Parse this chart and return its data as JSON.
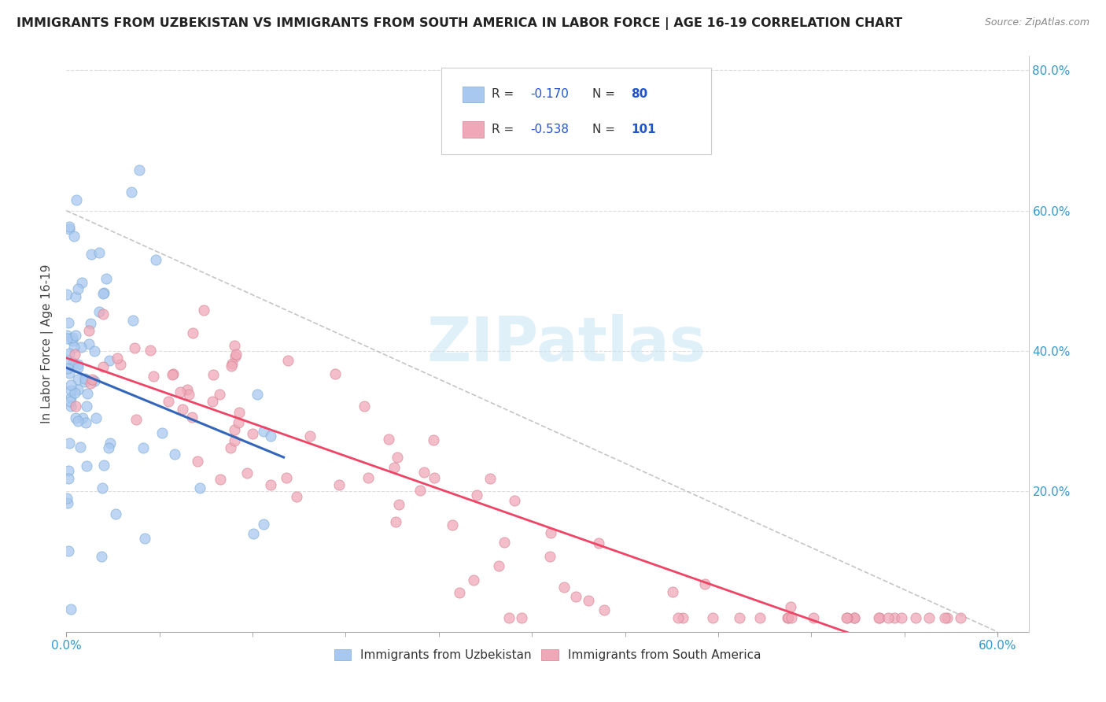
{
  "title": "IMMIGRANTS FROM UZBEKISTAN VS IMMIGRANTS FROM SOUTH AMERICA IN LABOR FORCE | AGE 16-19 CORRELATION CHART",
  "source": "Source: ZipAtlas.com",
  "ylabel": "In Labor Force | Age 16-19",
  "xlim": [
    0.0,
    0.62
  ],
  "ylim": [
    0.0,
    0.82
  ],
  "ytick_values": [
    0.2,
    0.4,
    0.6,
    0.8
  ],
  "ytick_labels": [
    "20.0%",
    "40.0%",
    "60.0%",
    "80.0%"
  ],
  "xtick_only_ends": [
    0.0,
    0.6
  ],
  "xtick_minor": [
    0.06,
    0.12,
    0.18,
    0.24,
    0.3,
    0.36,
    0.42,
    0.48,
    0.54
  ],
  "r_uzbekistan": -0.17,
  "n_uzbekistan": 80,
  "r_south_america": -0.538,
  "n_south_america": 101,
  "uzbekistan_color": "#a8c8f0",
  "uzbekistan_edge_color": "#7aaad4",
  "south_america_color": "#f0a8b8",
  "south_america_edge_color": "#d48090",
  "uzbekistan_line_color": "#3366bb",
  "south_america_line_color": "#ee4466",
  "diagonal_color": "#bbbbbb",
  "background_color": "#ffffff",
  "legend_r_color": "#2255cc",
  "legend_n_color": "#2255cc"
}
